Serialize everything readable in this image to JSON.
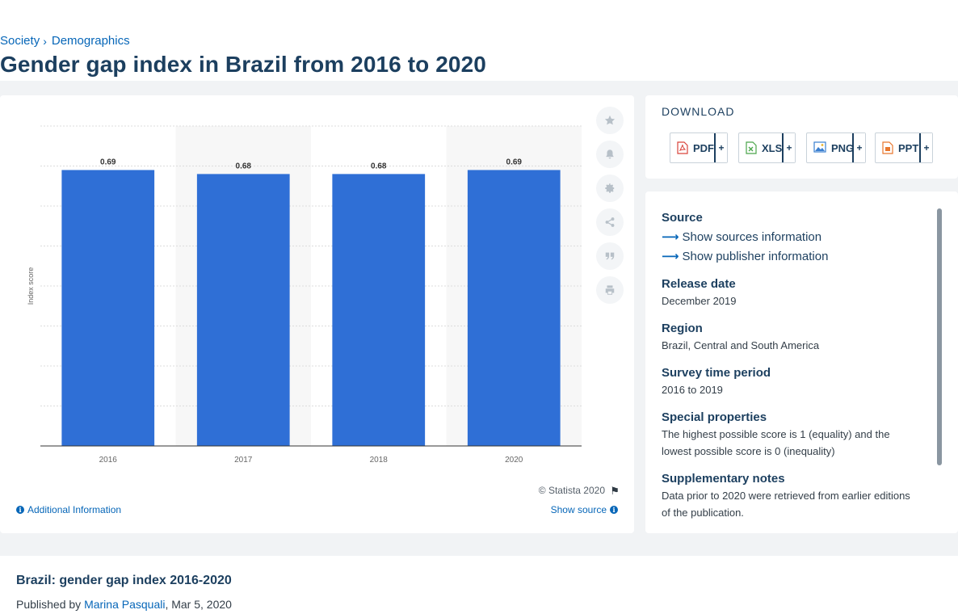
{
  "breadcrumb": {
    "item1": "Society",
    "item2": "Demographics"
  },
  "page_title": "Gender gap index in Brazil from 2016 to 2020",
  "chart_data": {
    "type": "bar",
    "categories": [
      "2016",
      "2017",
      "2018",
      "2020"
    ],
    "values": [
      0.69,
      0.68,
      0.68,
      0.69
    ],
    "data_labels": [
      "0.69",
      "0.68",
      "0.68",
      "0.69"
    ],
    "ylabel": "Index score",
    "xlabel": "",
    "ylim": [
      0,
      0.8
    ],
    "grid": true,
    "bar_color": "#2f6fd6"
  },
  "chart_footer": {
    "copyright": "© Statista 2020",
    "additional_info": "Additional Information",
    "show_source": "Show source"
  },
  "toolbar_icons": [
    "star-icon",
    "bell-icon",
    "gear-icon",
    "share-icon",
    "quote-icon",
    "print-icon"
  ],
  "download": {
    "title": "DOWNLOAD",
    "buttons": [
      {
        "label": "PDF",
        "plus": "+",
        "icon": "pdf-file-icon",
        "color": "#d9433b"
      },
      {
        "label": "XLS",
        "plus": "+",
        "icon": "xls-file-icon",
        "color": "#4aa54a"
      },
      {
        "label": "PNG",
        "plus": "+",
        "icon": "png-file-icon",
        "color": "#3a7fd0"
      },
      {
        "label": "PPT",
        "plus": "+",
        "icon": "ppt-file-icon",
        "color": "#e8772e"
      }
    ]
  },
  "info": {
    "source_label": "Source",
    "show_sources": "Show sources information",
    "show_publisher": "Show publisher information",
    "release_label": "Release date",
    "release_value": "December 2019",
    "region_label": "Region",
    "region_value": "Brazil, Central and South America",
    "survey_label": "Survey time period",
    "survey_value": "2016 to 2019",
    "special_label": "Special properties",
    "special_value": "The highest possible score is 1 (equality) and the lowest possible score is 0 (inequality)",
    "supp_label": "Supplementary notes",
    "supp_value": "Data prior to 2020 were retrieved from earlier editions of the publication."
  },
  "bottom": {
    "heading": "Brazil: gender gap index 2016-2020",
    "published_prefix": "Published by ",
    "author": "Marina Pasquali",
    "date": ", Mar 5, 2020"
  }
}
